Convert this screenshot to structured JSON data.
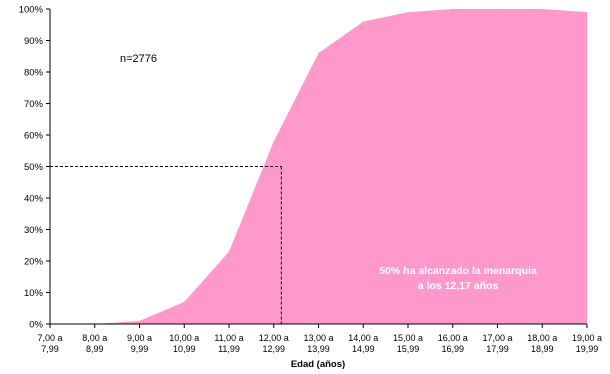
{
  "chart_data": {
    "type": "area",
    "xlabel": "Edad (años)",
    "ylabel": "",
    "categories": [
      [
        "7,00 a",
        "7,99"
      ],
      [
        "8,00 a",
        "8,99"
      ],
      [
        "9,00 a",
        "9,99"
      ],
      [
        "10,00 a",
        "10,99"
      ],
      [
        "11,00 a",
        "11,99"
      ],
      [
        "12,00 a",
        "12,99"
      ],
      [
        "13,00 a",
        "13,99"
      ],
      [
        "14,00 a",
        "14,99"
      ],
      [
        "15,00 a",
        "15,99"
      ],
      [
        "16,00 a",
        "16,99"
      ],
      [
        "17,00 a",
        "17,99"
      ],
      [
        "18,00 a",
        "18,99"
      ],
      [
        "19,00 a",
        "19,99"
      ]
    ],
    "values": [
      0,
      0,
      1,
      7,
      23,
      58,
      86,
      96,
      99,
      100,
      100,
      100,
      99
    ],
    "ylim": [
      0,
      100
    ],
    "yticks": [
      "0%",
      "10%",
      "20%",
      "30%",
      "40%",
      "50%",
      "60%",
      "70%",
      "80%",
      "90%",
      "100%"
    ],
    "fill_color": "#ff99cc",
    "reference": {
      "y": 50,
      "x": 12.17
    },
    "annotations": {
      "n": "n=2776",
      "note_line1": "50% ha alcanzado la menarquia",
      "note_line2": "a los 12,17 años"
    },
    "grid": false,
    "legend": "none"
  }
}
